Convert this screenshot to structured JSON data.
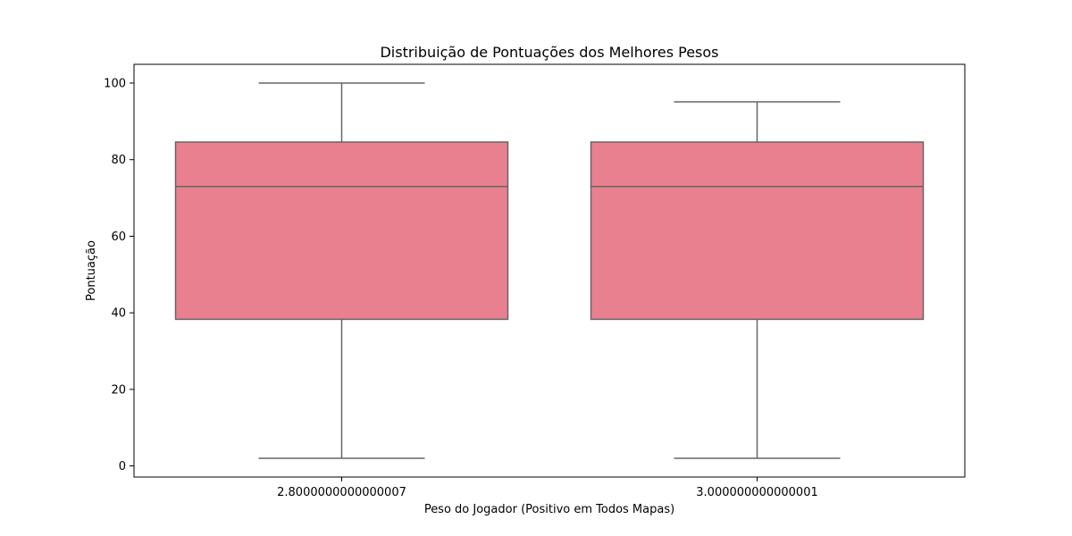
{
  "chart_data": {
    "type": "box",
    "title": "Distribuição de Pontuações dos Melhores Pesos",
    "xlabel": "Peso do Jogador (Positivo em Todos Mapas)",
    "ylabel": "Pontuação",
    "ylim": [
      -2.9,
      104.9
    ],
    "yticks": [
      0,
      20,
      40,
      60,
      80,
      100
    ],
    "categories": [
      "2.8000000000000007",
      "3.000000000000001"
    ],
    "boxes": [
      {
        "category": "2.8000000000000007",
        "whisker_low": 2,
        "q1": 38.3,
        "median": 73,
        "q3": 84.6,
        "whisker_high": 100
      },
      {
        "category": "3.000000000000001",
        "whisker_low": 2,
        "q1": 38.3,
        "median": 73,
        "q3": 84.6,
        "whisker_high": 95.1
      }
    ],
    "box_color": "#e8808f",
    "line_color": "#666666",
    "grid": false
  }
}
